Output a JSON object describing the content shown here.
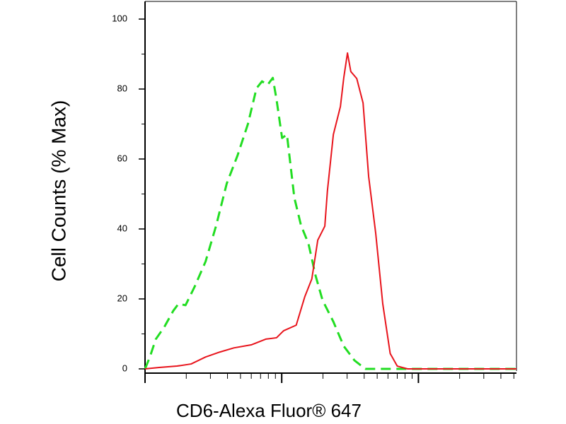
{
  "chart_data": {
    "type": "line",
    "y_label": "Cell Counts (% Max)",
    "x_label": "CD6-Alexa Fluor® 647",
    "ylim": [
      0,
      100
    ],
    "yticks": [
      0,
      20,
      40,
      60,
      80,
      100
    ],
    "yminorticks": [
      10,
      30,
      50,
      70,
      90
    ],
    "xlim": [
      0,
      100
    ],
    "xticks": [
      0,
      36.8,
      73.6
    ],
    "xminorticks": [
      11.1,
      17.6,
      22.2,
      25.7,
      28.6,
      31.1,
      33.2,
      35.1,
      47.9,
      54.4,
      59,
      62.5,
      65.4,
      67.9,
      70,
      71.9,
      84.7,
      91.2,
      95.8,
      99.3
    ],
    "series": [
      {
        "color": "#22dd22",
        "dashed": true,
        "x": [
          0,
          1.3,
          2.9,
          5.2,
          7.6,
          9,
          10.9,
          13.4,
          16.3,
          19.1,
          22,
          24.9,
          27.7,
          30,
          31.5,
          33,
          34.4,
          35.4,
          36.9,
          38.2,
          40.2,
          42,
          44,
          45.9,
          47.8,
          50.7,
          53.5,
          56.4,
          59.3,
          100
        ],
        "values": [
          0,
          3.4,
          8.5,
          12,
          16.6,
          18.6,
          18.2,
          23.6,
          30.7,
          40.8,
          53,
          61,
          70,
          80.2,
          82.2,
          81.2,
          83.2,
          77,
          66,
          67,
          48.9,
          41,
          35.8,
          26.7,
          19.6,
          13.5,
          6.5,
          2.4,
          0,
          0
        ]
      },
      {
        "color": "#e8141c",
        "dashed": false,
        "x": [
          0,
          3.8,
          8.6,
          12.4,
          16.3,
          20.1,
          23.9,
          28.7,
          32.5,
          35.4,
          37.3,
          40.7,
          43,
          44.9,
          46.5,
          48.4,
          49.1,
          50.7,
          52.6,
          53.5,
          54.5,
          55.4,
          57,
          58.7,
          60.2,
          62.1,
          64,
          66,
          67.9,
          70.7,
          100
        ],
        "values": [
          0,
          0.4,
          0.8,
          1.4,
          3.4,
          4.8,
          6,
          6.9,
          8.5,
          8.9,
          10.9,
          12.5,
          20.6,
          25.7,
          36.8,
          40.8,
          50.9,
          67,
          75,
          83.2,
          90.3,
          85,
          83,
          76,
          55,
          38.8,
          18.6,
          4.4,
          0.8,
          0,
          0
        ]
      }
    ]
  }
}
